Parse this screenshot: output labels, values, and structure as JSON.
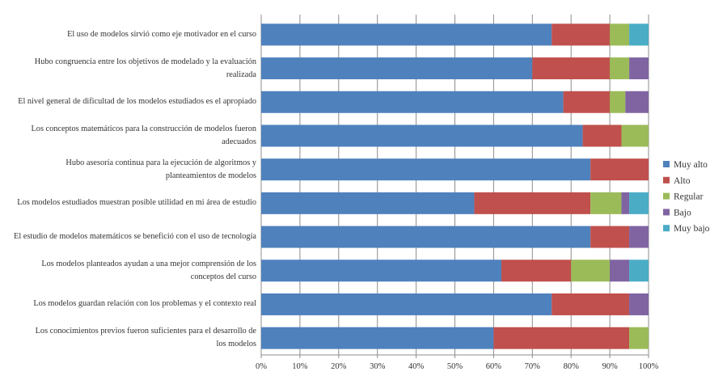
{
  "chart_data": {
    "type": "bar",
    "orientation": "horizontal",
    "stacked": "percent",
    "categories": [
      "El uso de modelos sirvió como eje motivador en el curso",
      "Hubo congruencia entre los objetivos de modelado y la evaluación realizada",
      "El nivel general de dificultad de los modelos estudiados es el apropiado",
      "Los conceptos matemáticos para la construcción de modelos fueron adecuados",
      "Hubo asesoría continua para la ejecución de algoritmos y planteamientos de modelos",
      "Los modelos estudiados muestran posible utilidad en mi área de estudio",
      "El estudio de modelos matemáticos se benefició con el uso de tecnología",
      "Los modelos planteados ayudan a una mejor comprensión de los conceptos del curso",
      "Los modelos guardan relación con los problemas y el contexto real",
      "Los conocimientos previos fueron suficientes para el desarrollo de los modelos"
    ],
    "series": [
      {
        "name": "Muy alto",
        "color": "#4f81bd",
        "values": [
          75,
          70,
          78,
          83,
          85,
          55,
          85,
          62,
          75,
          60
        ]
      },
      {
        "name": "Alto",
        "color": "#c0504d",
        "values": [
          15,
          20,
          12,
          10,
          15,
          30,
          10,
          18,
          20,
          35
        ]
      },
      {
        "name": "Regular",
        "color": "#9bbb59",
        "values": [
          5,
          5,
          4,
          7,
          0,
          8,
          0,
          10,
          0,
          5
        ]
      },
      {
        "name": "Bajo",
        "color": "#8064a2",
        "values": [
          0,
          5,
          6,
          0,
          0,
          2,
          5,
          5,
          5,
          0
        ]
      },
      {
        "name": "Muy bajo",
        "color": "#4bacc6",
        "values": [
          5,
          0,
          0,
          0,
          0,
          5,
          0,
          5,
          0,
          0
        ]
      }
    ],
    "xlim": [
      0,
      100
    ],
    "xticks": [
      "0%",
      "10%",
      "20%",
      "30%",
      "40%",
      "50%",
      "60%",
      "70%",
      "80%",
      "90%",
      "100%"
    ],
    "grid": "vertical",
    "legend": "right",
    "title": "",
    "xlabel": "",
    "ylabel": ""
  }
}
